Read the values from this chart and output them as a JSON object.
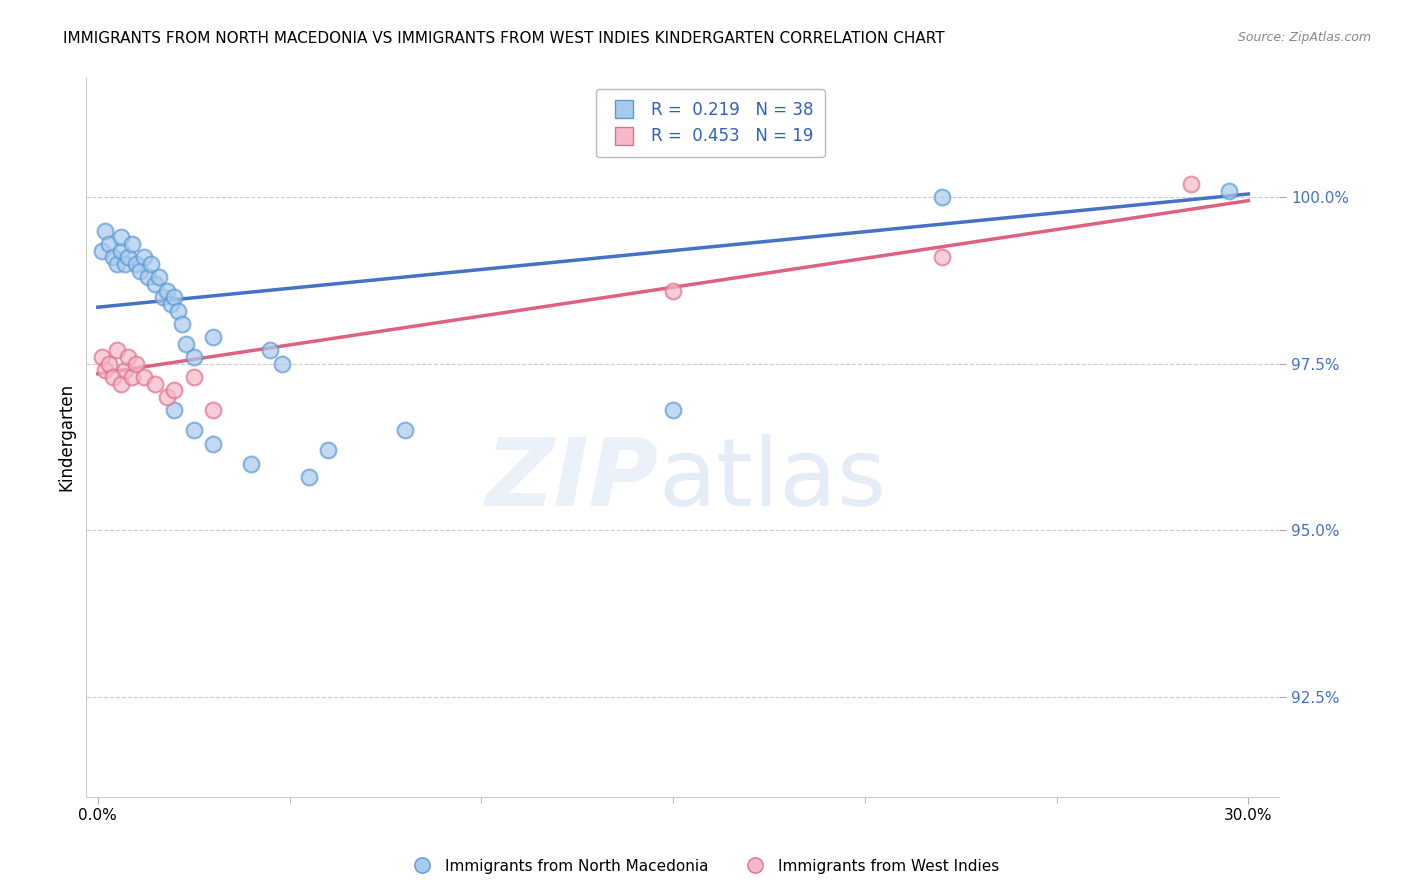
{
  "title": "IMMIGRANTS FROM NORTH MACEDONIA VS IMMIGRANTS FROM WEST INDIES KINDERGARTEN CORRELATION CHART",
  "source": "Source: ZipAtlas.com",
  "ylabel": "Kindergarten",
  "yticks": [
    92.5,
    95.0,
    97.5,
    100.0
  ],
  "xlim_display": [
    0.0,
    0.3
  ],
  "ylim": [
    91.0,
    101.8
  ],
  "legend_label1": "Immigrants from North Macedonia",
  "legend_label2": "Immigrants from West Indies",
  "r1": 0.219,
  "n1": 38,
  "r2": 0.453,
  "n2": 19,
  "color_blue_face": "#a8caec",
  "color_blue_edge": "#5b9bd5",
  "color_pink_face": "#f4b8c8",
  "color_pink_edge": "#e07090",
  "color_blue_line": "#4472c4",
  "color_pink_line": "#e06080",
  "blue_x": [
    0.001,
    0.002,
    0.003,
    0.004,
    0.005,
    0.006,
    0.006,
    0.007,
    0.008,
    0.009,
    0.01,
    0.011,
    0.012,
    0.013,
    0.014,
    0.015,
    0.016,
    0.017,
    0.018,
    0.019,
    0.02,
    0.021,
    0.022,
    0.023,
    0.025,
    0.03,
    0.045,
    0.048,
    0.02,
    0.025,
    0.03,
    0.04,
    0.055,
    0.06,
    0.08,
    0.15,
    0.22,
    0.295
  ],
  "blue_y": [
    99.2,
    99.5,
    99.3,
    99.1,
    99.0,
    99.2,
    99.4,
    99.0,
    99.1,
    99.3,
    99.0,
    98.9,
    99.1,
    98.8,
    99.0,
    98.7,
    98.8,
    98.5,
    98.6,
    98.4,
    98.5,
    98.3,
    98.1,
    97.8,
    97.6,
    97.9,
    97.7,
    97.5,
    96.8,
    96.5,
    96.3,
    96.0,
    95.8,
    96.2,
    96.5,
    96.8,
    100.0,
    100.1
  ],
  "pink_x": [
    0.001,
    0.002,
    0.003,
    0.004,
    0.005,
    0.006,
    0.007,
    0.008,
    0.009,
    0.01,
    0.012,
    0.015,
    0.018,
    0.02,
    0.025,
    0.03,
    0.15,
    0.22,
    0.285
  ],
  "pink_y": [
    97.6,
    97.4,
    97.5,
    97.3,
    97.7,
    97.2,
    97.4,
    97.6,
    97.3,
    97.5,
    97.3,
    97.2,
    97.0,
    97.1,
    97.3,
    96.8,
    98.6,
    99.1,
    100.2
  ],
  "blue_line_x": [
    0.0,
    0.3
  ],
  "blue_line_y": [
    98.35,
    100.05
  ],
  "pink_line_x": [
    0.0,
    0.3
  ],
  "pink_line_y": [
    97.35,
    99.95
  ]
}
